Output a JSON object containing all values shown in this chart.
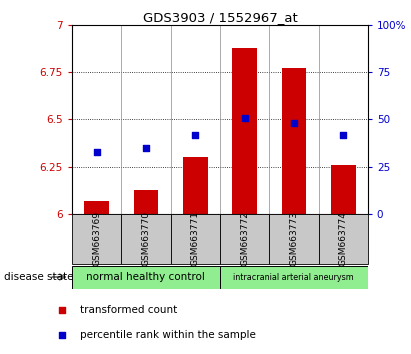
{
  "title": "GDS3903 / 1552967_at",
  "samples": [
    "GSM663769",
    "GSM663770",
    "GSM663771",
    "GSM663772",
    "GSM663773",
    "GSM663774"
  ],
  "bar_values": [
    6.07,
    6.13,
    6.3,
    6.88,
    6.77,
    6.26
  ],
  "percentile_values": [
    33,
    35,
    42,
    51,
    48,
    42
  ],
  "bar_color": "#cc0000",
  "percentile_color": "#0000cc",
  "ylim_left": [
    6.0,
    7.0
  ],
  "ylim_right": [
    0,
    100
  ],
  "yticks_left": [
    6.0,
    6.25,
    6.5,
    6.75,
    7.0
  ],
  "ytick_labels_left": [
    "6",
    "6.25",
    "6.5",
    "6.75",
    "7"
  ],
  "yticks_right": [
    0,
    25,
    50,
    75,
    100
  ],
  "ytick_labels_right": [
    "0",
    "25",
    "50",
    "75",
    "100%"
  ],
  "group1_label": "normal healthy control",
  "group2_label": "intracranial arterial aneurysm",
  "group_color": "#90ee90",
  "disease_state_label": "disease state",
  "legend_items": [
    {
      "color": "#cc0000",
      "label": "transformed count"
    },
    {
      "color": "#0000cc",
      "label": "percentile rank within the sample"
    }
  ],
  "bar_width": 0.5,
  "background_color": "#ffffff",
  "plot_bg_color": "#ffffff",
  "label_area_color": "#c8c8c8"
}
